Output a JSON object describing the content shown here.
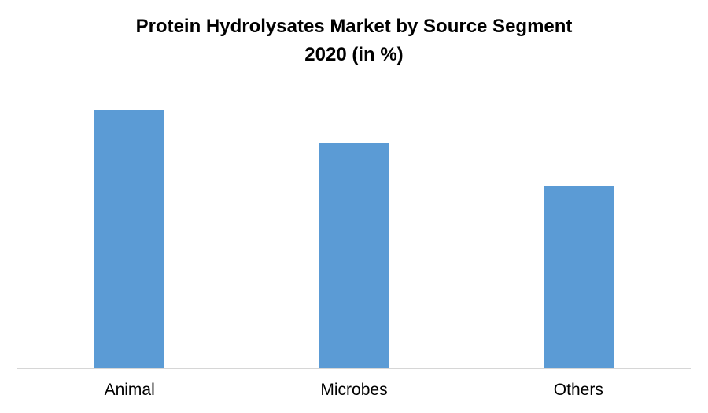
{
  "chart": {
    "title_line1": "Protein Hydrolysates Market by Source Segment",
    "title_line2": "2020 (in %)",
    "bar_color": "#5B9BD5",
    "axis_line_color": "#D6D6D6",
    "background_color": "#FFFFFF",
    "text_color": "#000000"
  },
  "chart_data": {
    "type": "bar",
    "title": "Protein Hydrolysates Market by Source Segment 2020 (in %)",
    "categories": [
      "Animal",
      "Microbes",
      "Others"
    ],
    "values": [
      39,
      34,
      27.5
    ],
    "value_unit": "%",
    "xlabel": "",
    "ylabel": "",
    "ylim": [
      0,
      44
    ],
    "grid": false,
    "legend": false,
    "y_axis_visible": false,
    "x_axis_line": true,
    "bar_color": "#5B9BD5",
    "axis_line_color": "#D6D6D6"
  }
}
